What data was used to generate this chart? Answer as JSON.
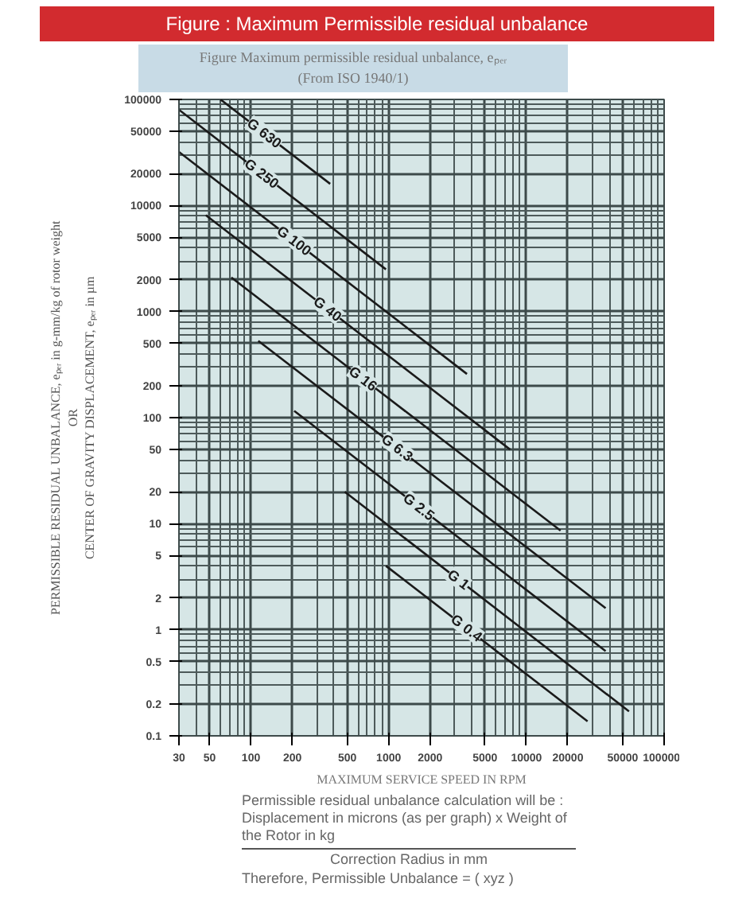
{
  "chart_data": {
    "type": "line",
    "title": "Figure : Maximum Permissible residual unbalance",
    "subtitle": "Figure Maximum permissible residual unbalance, eₚₑᵣ\n(From ISO 1940/1)",
    "xlabel": "MAXIMUM SERVICE SPEED IN RPM",
    "ylabel": "PERMISSIBLE RESIDUAL UNBALANCE, eₚₑᵣ in g-mm/kg of rotor weight\nOR\nCENTER OF GRAVITY DISPLACEMENT, eₚₑᵣ in µm",
    "log": "xy",
    "grid": true,
    "marker": "none",
    "line_style": "solid",
    "xlim": [
      30,
      100000
    ],
    "ylim": [
      0.1,
      100000
    ],
    "xticks": [
      30,
      50,
      100,
      200,
      500,
      1000,
      2000,
      5000,
      10000,
      20000,
      50000,
      100000
    ],
    "yticks": [
      0.1,
      0.2,
      0.5,
      1,
      2,
      5,
      10,
      20,
      50,
      100,
      200,
      500,
      1000,
      2000,
      5000,
      10000,
      20000,
      50000,
      100000
    ],
    "series": [
      {
        "name": "G 630",
        "color": "#1a1a1a",
        "x": [
          60,
          376
        ],
        "values": [
          100000,
          16000
        ]
      },
      {
        "name": "G 250",
        "color": "#1a1a1a",
        "x": [
          30,
          955
        ],
        "values": [
          80000,
          2500
        ]
      },
      {
        "name": "G 100",
        "color": "#1a1a1a",
        "x": [
          30,
          3700
        ],
        "values": [
          32000,
          258
        ]
      },
      {
        "name": "G 40",
        "color": "#1a1a1a",
        "x": [
          47,
          7620
        ],
        "values": [
          8100,
          50
        ]
      },
      {
        "name": "G 16",
        "color": "#1a1a1a",
        "x": [
          72,
          17700
        ],
        "values": [
          2100,
          8.6
        ]
      },
      {
        "name": "G 6.3",
        "color": "#1a1a1a",
        "x": [
          113,
          37600
        ],
        "values": [
          530,
          1.6
        ]
      },
      {
        "name": "G 2.5",
        "color": "#1a1a1a",
        "x": [
          206,
          37600
        ],
        "values": [
          116,
          0.63
        ]
      },
      {
        "name": "G 1",
        "color": "#1a1a1a",
        "x": [
          480,
          55600
        ],
        "values": [
          20,
          0.17
        ]
      },
      {
        "name": "G 0.4",
        "color": "#1a1a1a",
        "x": [
          955,
          27800
        ],
        "values": [
          4.0,
          0.137
        ]
      }
    ],
    "annotations": [
      "Permissible residual unbalance calculation will be : Displacement in microns (as per graph) x Weight of the Rotor in kg",
      "Correction Radius in mm",
      "Therefore, Permissible Unbalance  = ( xyz )"
    ]
  }
}
